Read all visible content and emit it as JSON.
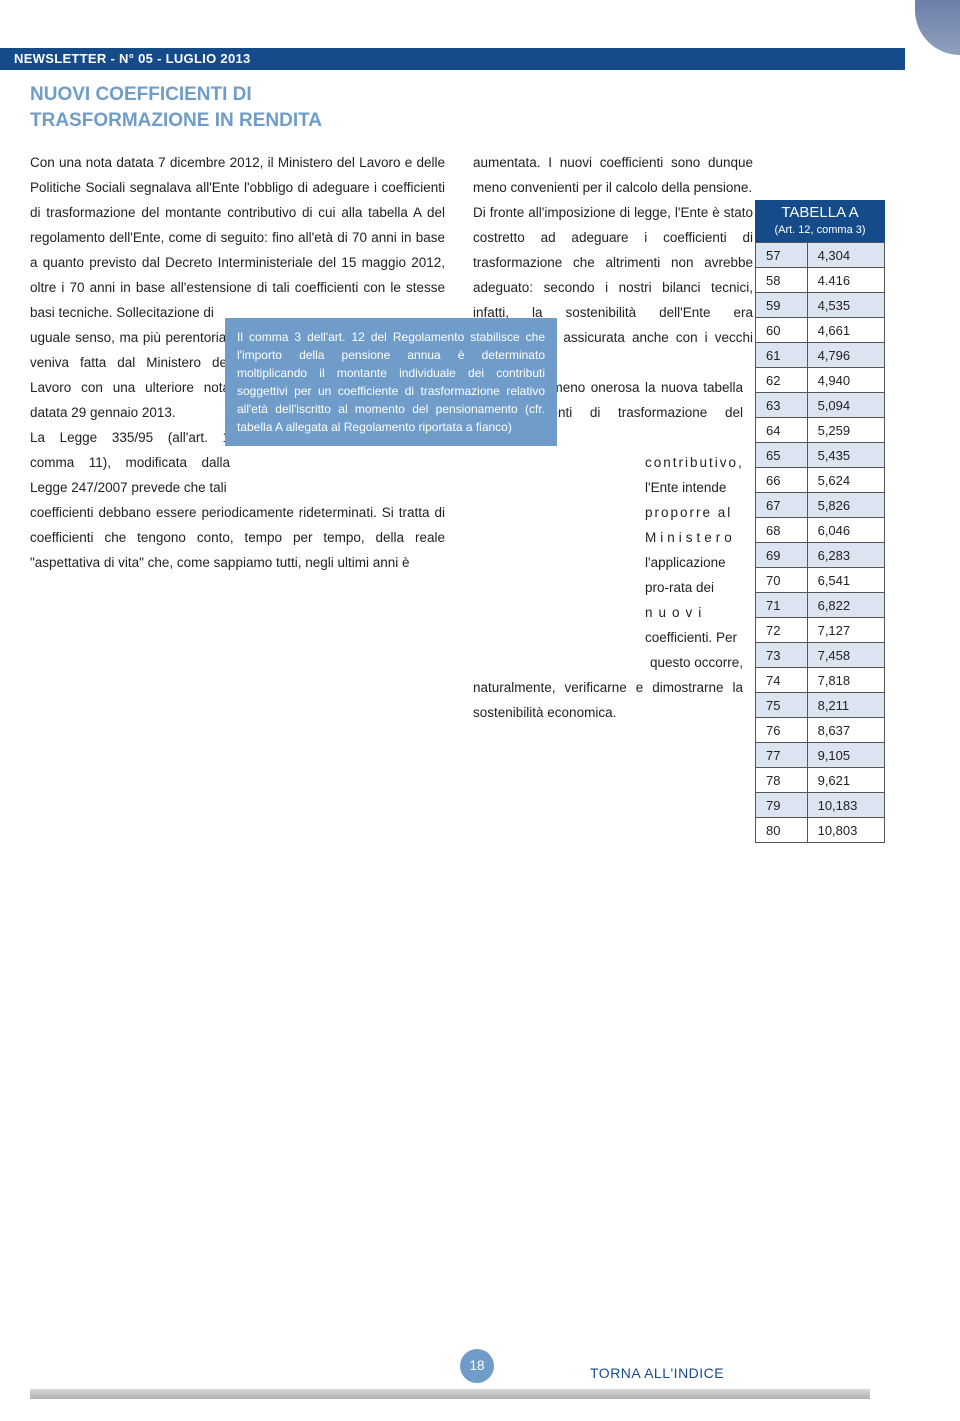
{
  "header": {
    "label": "NEWSLETTER  -  N° 05  -  LUGLIO 2013"
  },
  "section": {
    "title_line1": "NUOVI COEFFICIENTI DI",
    "title_line2": "TRASFORMAZIONE IN RENDITA"
  },
  "colors": {
    "accent_light": "#6f9cc9",
    "accent_dark": "#164b8a",
    "row_alt": "#dce4f2",
    "text": "#222222",
    "background": "#ffffff"
  },
  "left_text": {
    "p1": "Con una nota datata 7 dicembre 2012, il Ministero del Lavoro e delle Politiche Sociali segnalava all'Ente l'obbligo di adeguare i coefficienti di trasformazione del montante contributivo di cui alla tabella A del regolamento dell'Ente, come di seguito: fino all'età di 70 anni in base a quanto previsto dal Decreto Interministeriale del 15 maggio 2012, oltre i 70 anni in base all'estensione di tali coefficienti con le stesse basi tecniche. Sollecitazione di",
    "p2_narrow": "uguale senso, ma più perentoria, veniva fatta dal Ministero del Lavoro con una ulteriore nota datata 29 gennaio 2013.",
    "p2_narrow2": "La Legge 335/95 (all'art. 1 comma 11), modificata dalla Legge 247/2007 prevede che tali",
    "p3": "coefficienti debbano essere periodicamente rideterminati. Si tratta di coefficienti che tengono conto, tempo per tempo, della reale \"aspettativa di vita\" che, come sappiamo tutti, negli ultimi anni è"
  },
  "right_text": {
    "p1": "aumentata. I nuovi coefficienti sono dunque meno convenienti per il calcolo della pensione.",
    "p2": "Di fronte all'imposizione di legge, l'Ente è stato costretto ad adeguare i coefficienti di trasformazione che altrimenti non avrebbe adeguato: secondo i nostri bilanci tecnici, infatti, la sostenibilità dell'Ente era perfettamente assicurata anche con i vecchi coefficienti.",
    "p3": "Per rendere meno onerosa la nuova tabella dei coefficienti di trasformazione del montante",
    "p4_narrow_a": "contributivo,",
    "p4_narrow_b": "l'Ente intende",
    "p4_narrow_c": "proporre al",
    "p4_narrow_d": "Ministero",
    "p4_narrow_e": "l'applicazione",
    "p4_narrow_f": "pro-rata dei",
    "p4_narrow_g": "nuovi",
    "p4_narrow_h": "coefficienti. Per",
    "p5a": "questo occorre,",
    "p5": "naturalmente, verificarne e dimostrarne la sostenibilità economica."
  },
  "inset": {
    "text": "Il comma 3 dell'art. 12 del Regolamento stabilisce che l'importo della pensione annua è determinato moltiplicando il montante individuale dei contributi soggettivi per un coefficiente di trasformazione relativo all'età dell'iscritto al momento del pensionamento (cfr. tabella A allegata al Regolamento riportata a fianco)"
  },
  "table": {
    "title": "TABELLA A",
    "subtitle": "(Art. 12, comma 3)",
    "rows": [
      {
        "age": "57",
        "val": "4,304"
      },
      {
        "age": "58",
        "val": "4.416"
      },
      {
        "age": "59",
        "val": "4,535"
      },
      {
        "age": "60",
        "val": "4,661"
      },
      {
        "age": "61",
        "val": "4,796"
      },
      {
        "age": "62",
        "val": "4,940"
      },
      {
        "age": "63",
        "val": "5,094"
      },
      {
        "age": "64",
        "val": "5,259"
      },
      {
        "age": "65",
        "val": "5,435"
      },
      {
        "age": "66",
        "val": "5,624"
      },
      {
        "age": "67",
        "val": "5,826"
      },
      {
        "age": "68",
        "val": "6,046"
      },
      {
        "age": "69",
        "val": "6,283"
      },
      {
        "age": "70",
        "val": "6,541"
      },
      {
        "age": "71",
        "val": "6,822"
      },
      {
        "age": "72",
        "val": "7,127"
      },
      {
        "age": "73",
        "val": "7,458"
      },
      {
        "age": "74",
        "val": "7,818"
      },
      {
        "age": "75",
        "val": "8,211"
      },
      {
        "age": "76",
        "val": "8,637"
      },
      {
        "age": "77",
        "val": "9,105"
      },
      {
        "age": "78",
        "val": "9,621"
      },
      {
        "age": "79",
        "val": "10,183"
      },
      {
        "age": "80",
        "val": "10,803"
      }
    ]
  },
  "footer": {
    "page_number": "18",
    "link_label": "TORNA ALL'INDICE"
  }
}
